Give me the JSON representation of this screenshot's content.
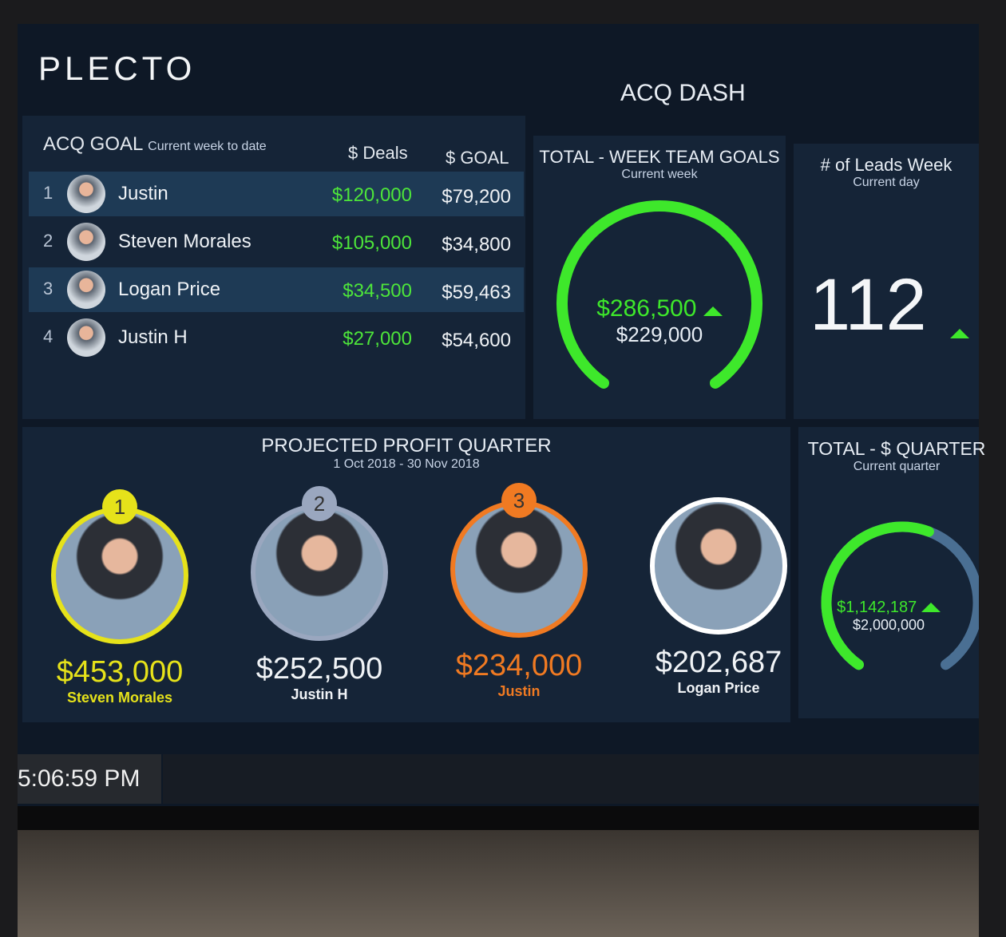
{
  "header": {
    "logo": "PLECTO",
    "title": "ACQ DASH"
  },
  "acq_goal": {
    "title": "ACQ GOAL",
    "subtitle": "Current week to date",
    "col_deals": "$ Deals",
    "col_goal": "$ GOAL",
    "rows": [
      {
        "rank": "1",
        "name": "Justin",
        "deals": "$120,000",
        "goal": "$79,200"
      },
      {
        "rank": "2",
        "name": "Steven Morales",
        "deals": "$105,000",
        "goal": "$34,800"
      },
      {
        "rank": "3",
        "name": "Logan Price",
        "deals": "$34,500",
        "goal": "$59,463"
      },
      {
        "rank": "4",
        "name": "Justin H",
        "deals": "$27,000",
        "goal": "$54,600"
      }
    ]
  },
  "week_goals": {
    "title": "TOTAL - WEEK TEAM GOALS",
    "subtitle": "Current week",
    "value": "$286,500",
    "target": "$229,000",
    "progress": 1.0,
    "color": "#3ee82b"
  },
  "leads": {
    "title": "# of Leads Week",
    "subtitle": "Current day",
    "value": "112"
  },
  "profit": {
    "title": "PROJECTED PROFIT QUARTER",
    "subtitle": "1 Oct 2018 - 30 Nov 2018",
    "people": [
      {
        "rank": "1",
        "name": "Steven Morales",
        "amount": "$453,000",
        "color": "#e6e21a"
      },
      {
        "rank": "2",
        "name": "Justin H",
        "amount": "$252,500",
        "color": "#9aa7bf"
      },
      {
        "rank": "3",
        "name": "Justin",
        "amount": "$234,000",
        "color": "#f07a22"
      },
      {
        "rank": "",
        "name": "Logan Price",
        "amount": "$202,687",
        "color": "#ffffff"
      }
    ]
  },
  "quarter": {
    "title": "TOTAL - $ QUARTER",
    "subtitle": "Current quarter",
    "value": "$1,142,187",
    "target": "$2,000,000",
    "progress": 0.571,
    "color": "#3ee82b",
    "track": "#4a6f93"
  },
  "clock": {
    "time": "5:06:59 PM"
  }
}
